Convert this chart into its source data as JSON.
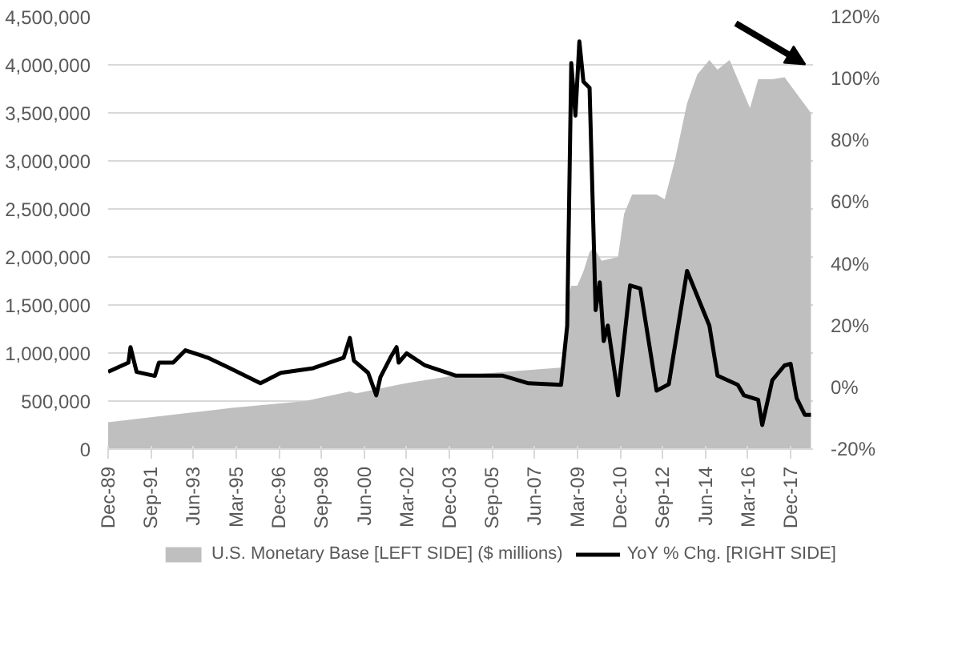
{
  "chart_data": {
    "type": "area",
    "xlim": [
      "1989-12",
      "2018-11"
    ],
    "xticks": [
      {
        "value": "1989-12",
        "label": "Dec-89"
      },
      {
        "value": "1991-09",
        "label": "Sep-91"
      },
      {
        "value": "1993-06",
        "label": "Jun-93"
      },
      {
        "value": "1995-03",
        "label": "Mar-95"
      },
      {
        "value": "1996-12",
        "label": "Dec-96"
      },
      {
        "value": "1998-09",
        "label": "Sep-98"
      },
      {
        "value": "2000-06",
        "label": "Jun-00"
      },
      {
        "value": "2002-03",
        "label": "Mar-02"
      },
      {
        "value": "2003-12",
        "label": "Dec-03"
      },
      {
        "value": "2005-09",
        "label": "Sep-05"
      },
      {
        "value": "2007-06",
        "label": "Jun-07"
      },
      {
        "value": "2009-03",
        "label": "Mar-09"
      },
      {
        "value": "2010-12",
        "label": "Dec-10"
      },
      {
        "value": "2012-09",
        "label": "Sep-12"
      },
      {
        "value": "2014-06",
        "label": "Jun-14"
      },
      {
        "value": "2016-03",
        "label": "Mar-16"
      },
      {
        "value": "2017-12",
        "label": "Dec-17"
      }
    ],
    "ylim": [
      0,
      4500000
    ],
    "yticks": [
      0,
      {
        "value": 500000,
        "label": "500,000"
      },
      {
        "value": 1000000,
        "label": "1,000,000"
      },
      {
        "value": 1500000,
        "label": "1,500,000"
      },
      {
        "value": 2000000,
        "label": "2,000,000"
      },
      {
        "value": 2500000,
        "label": "2,500,000"
      },
      {
        "value": 3000000,
        "label": "3,000,000"
      },
      {
        "value": 3500000,
        "label": "3,500,000"
      },
      {
        "value": 4000000,
        "label": "4,000,000"
      },
      {
        "value": 4500000,
        "label": "4,500,000"
      }
    ],
    "y2lim": [
      -20,
      120
    ],
    "y2ticks": [
      {
        "value": -20,
        "label": "-20%"
      },
      {
        "value": 0,
        "label": "0%"
      },
      {
        "value": 20,
        "label": "20%"
      },
      {
        "value": 40,
        "label": "40%"
      },
      {
        "value": 60,
        "label": "60%"
      },
      {
        "value": 80,
        "label": "80%"
      },
      {
        "value": 100,
        "label": "100%"
      },
      {
        "value": 120,
        "label": "120%"
      }
    ],
    "grid": "y",
    "legend": "bottom",
    "series": [
      {
        "name": "U.S. Monetary Base [LEFT SIDE] ($ millions)",
        "color": "#bfbfbf",
        "x": [
          "1989-12",
          "1993-01",
          "1995-01",
          "1998-01",
          "1999-11",
          "2000-02",
          "2002-01",
          "2004-01",
          "2006-01",
          "2008-08",
          "2008-10",
          "2008-12",
          "2009-03",
          "2009-06",
          "2009-09",
          "2009-11",
          "2010-03",
          "2010-11",
          "2011-02",
          "2011-06",
          "2012-06",
          "2012-10",
          "2013-03",
          "2013-09",
          "2014-02",
          "2014-08",
          "2014-12",
          "2015-06",
          "2015-12",
          "2016-04",
          "2016-08",
          "2017-03",
          "2017-09",
          "2018-03",
          "2018-10"
        ],
        "values": [
          280000,
          370000,
          430000,
          500000,
          600000,
          580000,
          680000,
          760000,
          800000,
          850000,
          1540000,
          1700000,
          1700000,
          1850000,
          2050000,
          2100000,
          1960000,
          2000000,
          2450000,
          2650000,
          2650000,
          2600000,
          3000000,
          3600000,
          3900000,
          4050000,
          3950000,
          4050000,
          3750000,
          3550000,
          3850000,
          3850000,
          3870000,
          3700000,
          3500000
        ]
      },
      {
        "name": "YoY % Chg. [RIGHT SIDE]",
        "type": "line",
        "axis": "y2",
        "color": "#000000",
        "x": [
          "1989-12",
          "1990-10",
          "1990-11",
          "1991-02",
          "1991-11",
          "1992-01",
          "1992-08",
          "1993-02",
          "1994-01",
          "1994-12",
          "1996-03",
          "1997-01",
          "1998-05",
          "1999-08",
          "1999-11",
          "2000-01",
          "2000-08",
          "2000-12",
          "2001-02",
          "2001-07",
          "2001-10",
          "2001-11",
          "2002-03",
          "2002-12",
          "2004-03",
          "2006-02",
          "2007-03",
          "2008-07",
          "2008-10",
          "2008-12",
          "2009-02",
          "2009-04",
          "2009-06",
          "2009-09",
          "2009-12",
          "2010-02",
          "2010-04",
          "2010-06",
          "2010-11",
          "2011-05",
          "2011-10",
          "2012-06",
          "2012-12",
          "2013-09",
          "2014-08",
          "2014-12",
          "2015-10",
          "2016-01",
          "2016-08",
          "2016-10",
          "2017-03",
          "2017-09",
          "2017-12",
          "2018-03",
          "2018-07",
          "2018-10"
        ],
        "values": [
          5,
          8,
          13,
          5,
          3.7,
          8,
          8,
          12,
          9.6,
          6.2,
          1.3,
          4.7,
          6.2,
          9.6,
          16,
          8.6,
          4.7,
          -2.6,
          3.3,
          9.6,
          13,
          8,
          11,
          7.1,
          3.8,
          3.8,
          1.3,
          0.8,
          20,
          105,
          88,
          112,
          99,
          97,
          25,
          34,
          15,
          20,
          -2.6,
          33,
          32,
          -1.1,
          1,
          37.7,
          20,
          3.8,
          0.8,
          -2.6,
          -4,
          -12.2,
          2.3,
          7.1,
          7.6,
          -3.5,
          -8.9,
          -8.9
        ]
      }
    ]
  }
}
